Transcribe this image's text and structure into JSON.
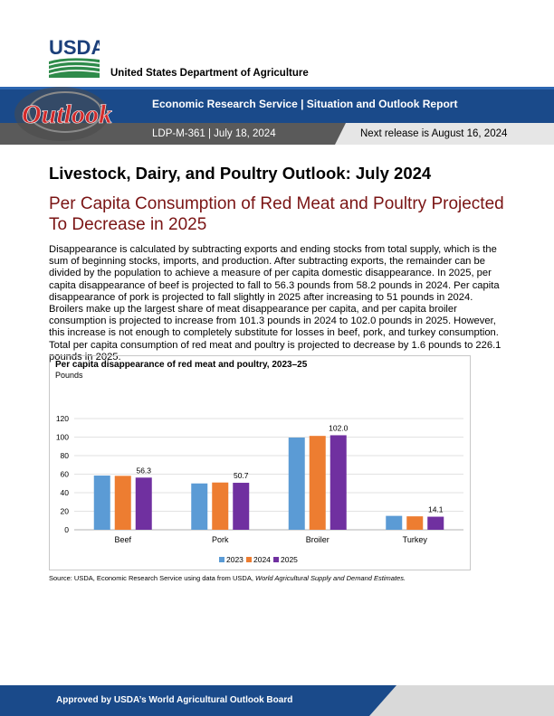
{
  "header": {
    "agency_logo": "USDA",
    "department": "United States Department of Agriculture",
    "report_type": "Economic Research Service | Situation and Outlook Report",
    "outlook_logo": "Outlook",
    "report_id": "LDP-M-361   |   July 18, 2024",
    "next_release": "Next release is August 16, 2024"
  },
  "title": "Livestock, Dairy, and Poultry Outlook: July 2024",
  "subtitle": "Per Capita Consumption of Red Meat and Poultry Projected To Decrease in 2025",
  "body": "Disappearance is calculated by subtracting exports and ending stocks from total supply, which is the sum of beginning stocks, imports, and production. After subtracting exports, the remainder can be divided by the population to achieve a measure of per capita domestic disappearance. In 2025, per capita disappearance of beef is projected to fall to 56.3 pounds from 58.2 pounds in 2024. Per capita disappearance of pork is projected to fall slightly in 2025 after increasing to 51 pounds in 2024. Broilers make up the largest share of meat disappearance per capita, and per capita broiler consumption is projected to increase from 101.3 pounds in 2024 to 102.0 pounds in 2025. However, this increase is not enough to completely substitute for losses in beef, pork, and turkey consumption. Total per capita consumption of red meat and poultry is projected to decrease by 1.6 pounds to 226.1 pounds in 2025.",
  "chart_data": {
    "type": "bar",
    "title": "Per capita disappearance of red meat and poultry, 2023–25",
    "ylabel": "Pounds",
    "xlabel": "",
    "categories": [
      "Beef",
      "Pork",
      "Broiler",
      "Turkey"
    ],
    "ylim": [
      0,
      120
    ],
    "yticks": [
      0,
      20,
      40,
      60,
      80,
      100,
      120
    ],
    "grid": true,
    "legend_position": "bottom",
    "series": [
      {
        "name": "2023",
        "values": [
          58.5,
          50.0,
          99.5,
          15.0
        ],
        "color": "#5b9bd5"
      },
      {
        "name": "2024",
        "values": [
          58.2,
          51.0,
          101.3,
          14.5
        ],
        "color": "#ed7d31"
      },
      {
        "name": "2025",
        "values": [
          56.3,
          50.7,
          102.0,
          14.1
        ],
        "color": "#7030a0"
      }
    ],
    "data_labels": [
      {
        "category": "Beef",
        "series": "2025",
        "text": "56.3"
      },
      {
        "category": "Pork",
        "series": "2025",
        "text": "50.7"
      },
      {
        "category": "Broiler",
        "series": "2025",
        "text": "102.0"
      },
      {
        "category": "Turkey",
        "series": "2025",
        "text": "14.1"
      }
    ]
  },
  "source": {
    "prefix": "Source: USDA, Economic Research Service using data from USDA, ",
    "italic": "World Agricultural Supply and Demand Estimates."
  },
  "footer": {
    "text": "Approved by USDA’s World Agricultural Outlook Board"
  }
}
